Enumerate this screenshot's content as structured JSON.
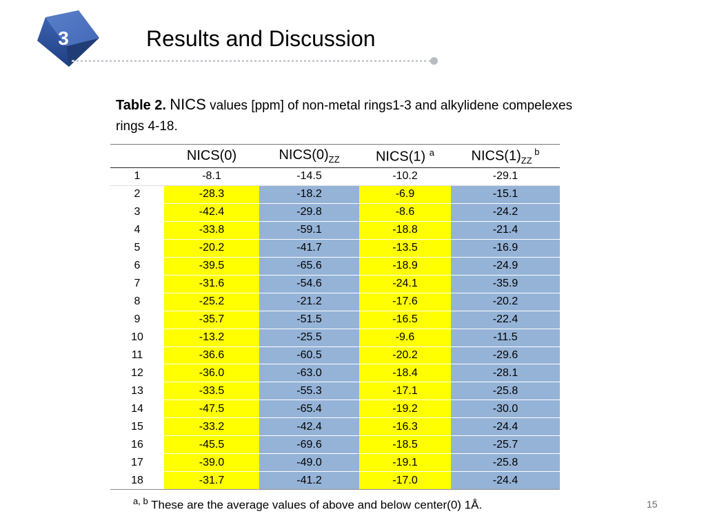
{
  "slide": {
    "section_number": "3",
    "title": "Results and Discussion",
    "page_number": "15"
  },
  "caption": {
    "bold": "Table 2.",
    "nics": "NICS",
    "rest": " values [ppm] of non-metal rings1-3 and alkylidene compelexes rings 4-18."
  },
  "table": {
    "headers": [
      {
        "main": "",
        "sub": "",
        "sup": ""
      },
      {
        "main": "NICS(0)",
        "sub": "",
        "sup": ""
      },
      {
        "main": "NICS(0)",
        "sub": "ZZ",
        "sup": ""
      },
      {
        "main": "NICS(1) ",
        "sub": "",
        "sup": "a"
      },
      {
        "main": "NICS(1)",
        "sub": "ZZ",
        "sup": " b"
      }
    ],
    "rows": [
      [
        "1",
        "-8.1",
        "-14.5",
        "-10.2",
        "-29.1"
      ],
      [
        "2",
        "-28.3",
        "-18.2",
        "-6.9",
        "-15.1"
      ],
      [
        "3",
        "-42.4",
        "-29.8",
        "-8.6",
        "-24.2"
      ],
      [
        "4",
        "-33.8",
        "-59.1",
        "-18.8",
        "-21.4"
      ],
      [
        "5",
        "-20.2",
        "-41.7",
        "-13.5",
        "-16.9"
      ],
      [
        "6",
        "-39.5",
        "-65.6",
        "-18.9",
        "-24.9"
      ],
      [
        "7",
        "-31.6",
        "-54.6",
        "-24.1",
        "-35.9"
      ],
      [
        "8",
        "-25.2",
        "-21.2",
        "-17.6",
        "-20.2"
      ],
      [
        "9",
        "-35.7",
        "-51.5",
        "-16.5",
        "-22.4"
      ],
      [
        "10",
        "-13.2",
        "-25.5",
        "-9.6",
        "-11.5"
      ],
      [
        "11",
        "-36.6",
        "-60.5",
        "-20.2",
        "-29.6"
      ],
      [
        "12",
        "-36.0",
        "-63.0",
        "-18.4",
        "-28.1"
      ],
      [
        "13",
        "-33.5",
        "-55.3",
        "-17.1",
        "-25.8"
      ],
      [
        "14",
        "-47.5",
        "-65.4",
        "-19.2",
        "-30.0"
      ],
      [
        "15",
        "-33.2",
        "-42.4",
        "-16.3",
        "-24.4"
      ],
      [
        "16",
        "-45.5",
        "-69.6",
        "-18.5",
        "-25.7"
      ],
      [
        "17",
        "-39.0",
        "-49.0",
        "-19.1",
        "-25.8"
      ],
      [
        "18",
        "-31.7",
        "-41.2",
        "-17.0",
        "-24.4"
      ]
    ]
  },
  "footnote": {
    "marks": "a, b",
    "text": " These are the average values of above and below center(0) 1Å."
  },
  "colors": {
    "highlight_yellow": "#ffff00",
    "highlight_blue": "#95b3d7",
    "badge_blue": "#2f5597"
  }
}
